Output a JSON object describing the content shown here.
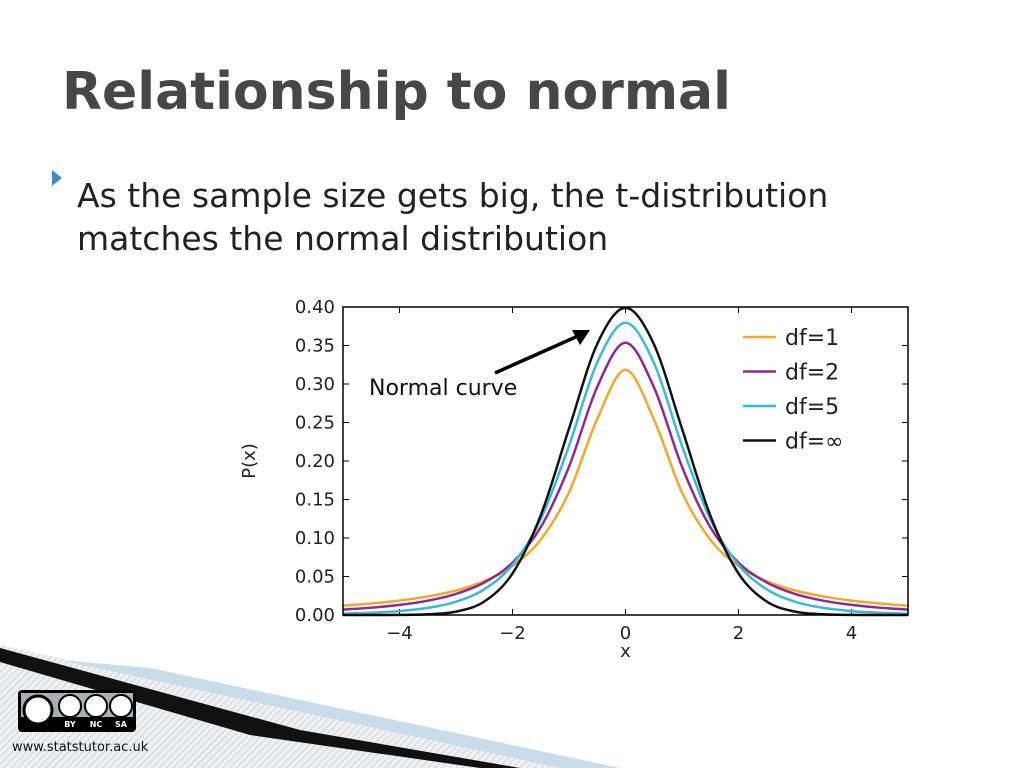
{
  "slide": {
    "title": "Relationship to normal",
    "bullets": [
      "As the sample size gets big, the t-distribution matches the normal distribution"
    ],
    "footer": "www.statstutor.ac.uk",
    "license_badges": [
      "BY",
      "NC",
      "SA"
    ]
  },
  "chart_data": {
    "type": "line",
    "x": [
      -5,
      -4.5,
      -4,
      -3.5,
      -3,
      -2.5,
      -2,
      -1.5,
      -1,
      -0.5,
      0,
      0.5,
      1,
      1.5,
      2,
      2.5,
      3,
      3.5,
      4,
      4.5,
      5
    ],
    "series": [
      {
        "name": "df=1",
        "color": "#f0a830",
        "values": [
          0.0122,
          0.015,
          0.0187,
          0.0241,
          0.0318,
          0.0439,
          0.0637,
          0.0979,
          0.1592,
          0.2546,
          0.3183,
          0.2546,
          0.1592,
          0.0979,
          0.0637,
          0.0439,
          0.0318,
          0.0241,
          0.0187,
          0.015,
          0.0122
        ]
      },
      {
        "name": "df=2",
        "color": "#8e2a8e",
        "values": [
          0.0071,
          0.0095,
          0.0131,
          0.0186,
          0.0274,
          0.0422,
          0.068,
          0.1141,
          0.1925,
          0.2963,
          0.3536,
          0.2963,
          0.1925,
          0.1141,
          0.068,
          0.0422,
          0.0274,
          0.0186,
          0.0131,
          0.0095,
          0.0071
        ]
      },
      {
        "name": "df=5",
        "color": "#38bad8",
        "values": [
          0.0018,
          0.0029,
          0.0051,
          0.0092,
          0.0173,
          0.0333,
          0.0651,
          0.1245,
          0.2197,
          0.3279,
          0.3796,
          0.3279,
          0.2197,
          0.1245,
          0.0651,
          0.0333,
          0.0173,
          0.0092,
          0.0051,
          0.0029,
          0.0018
        ]
      },
      {
        "name": "df=∞",
        "color": "#111111",
        "values": [
          0.0,
          0.0,
          0.0001,
          0.0009,
          0.0044,
          0.0175,
          0.054,
          0.1295,
          0.242,
          0.3521,
          0.3989,
          0.3521,
          0.242,
          0.1295,
          0.054,
          0.0175,
          0.0044,
          0.0009,
          0.0001,
          0.0,
          0.0
        ]
      }
    ],
    "xlabel": "x",
    "ylabel": "P(x)",
    "annotation": "Normal curve",
    "xlim": [
      -5,
      5
    ],
    "xticks": [
      {
        "value": -4,
        "label": "−4"
      },
      {
        "value": -2,
        "label": "−2"
      },
      0,
      2,
      4
    ],
    "ylim": [
      0,
      0.4
    ],
    "yticks": [
      {
        "value": 0,
        "label": "0.00"
      },
      {
        "value": 0.05,
        "label": "0.05"
      },
      {
        "value": 0.1,
        "label": "0.10"
      },
      {
        "value": 0.15,
        "label": "0.15"
      },
      {
        "value": 0.2,
        "label": "0.20"
      },
      {
        "value": 0.25,
        "label": "0.25"
      },
      {
        "value": 0.3,
        "label": "0.30"
      },
      {
        "value": 0.35,
        "label": "0.35"
      },
      {
        "value": 0.4,
        "label": "0.40"
      }
    ],
    "legend": "upper right",
    "grid": false
  }
}
